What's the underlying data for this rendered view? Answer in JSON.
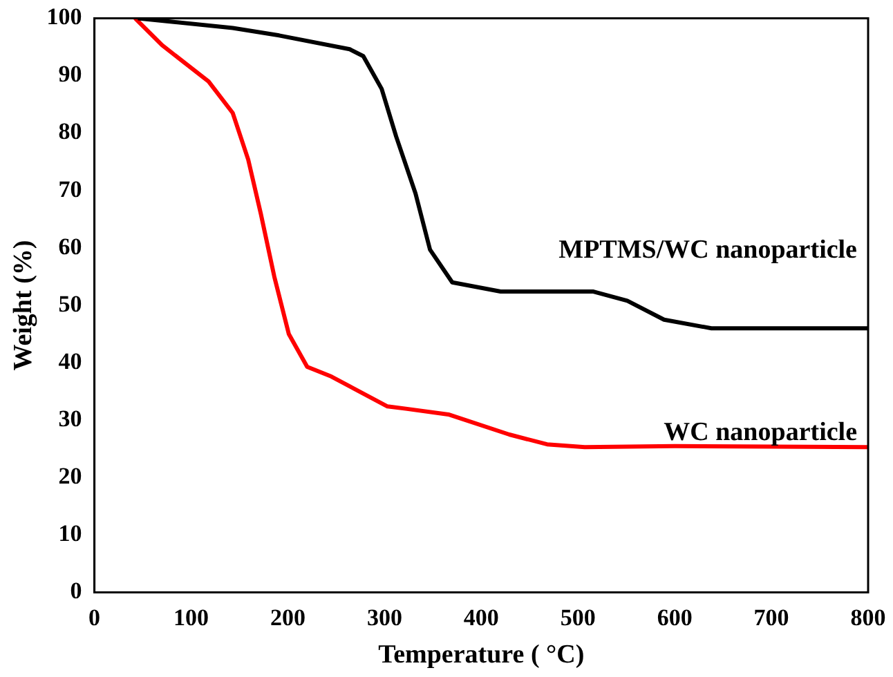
{
  "chart_data": {
    "type": "line",
    "xlabel": "Temperature ( °C)",
    "ylabel": "Weight (%)",
    "xlim": [
      0,
      800
    ],
    "xticks": [
      0,
      100,
      200,
      300,
      400,
      500,
      600,
      700,
      800
    ],
    "ylim": [
      0,
      100
    ],
    "yticks": [
      0,
      10,
      20,
      30,
      40,
      50,
      60,
      70,
      80,
      90,
      100
    ],
    "grid": false,
    "legend": false,
    "marker": "none",
    "line_style": "solid",
    "series": [
      {
        "name": "MPTMS/WC nanoparticle",
        "color": "#000000",
        "x": [
          45,
          143,
          191,
          264,
          278,
          297,
          312,
          332,
          347,
          370,
          420,
          516,
          551,
          589,
          638,
          700,
          800
        ],
        "values": [
          100,
          98.3,
          97,
          94.6,
          93.4,
          87.7,
          79.4,
          69.5,
          59.7,
          54,
          52.4,
          52.4,
          50.8,
          47.5,
          46,
          46,
          46
        ]
      },
      {
        "name": "WC nanoparticle",
        "color": "#ff0000",
        "x": [
          42,
          70,
          118,
          143,
          159,
          172,
          186,
          201,
          220,
          245,
          303,
          322,
          366,
          429,
          468,
          507,
          600,
          700,
          800
        ],
        "values": [
          100,
          95.3,
          89,
          83.5,
          75.4,
          66,
          55,
          45,
          39.3,
          37.6,
          32.4,
          32,
          31,
          27.5,
          25.8,
          25.3,
          25.5,
          25.4,
          25.3
        ]
      }
    ]
  }
}
